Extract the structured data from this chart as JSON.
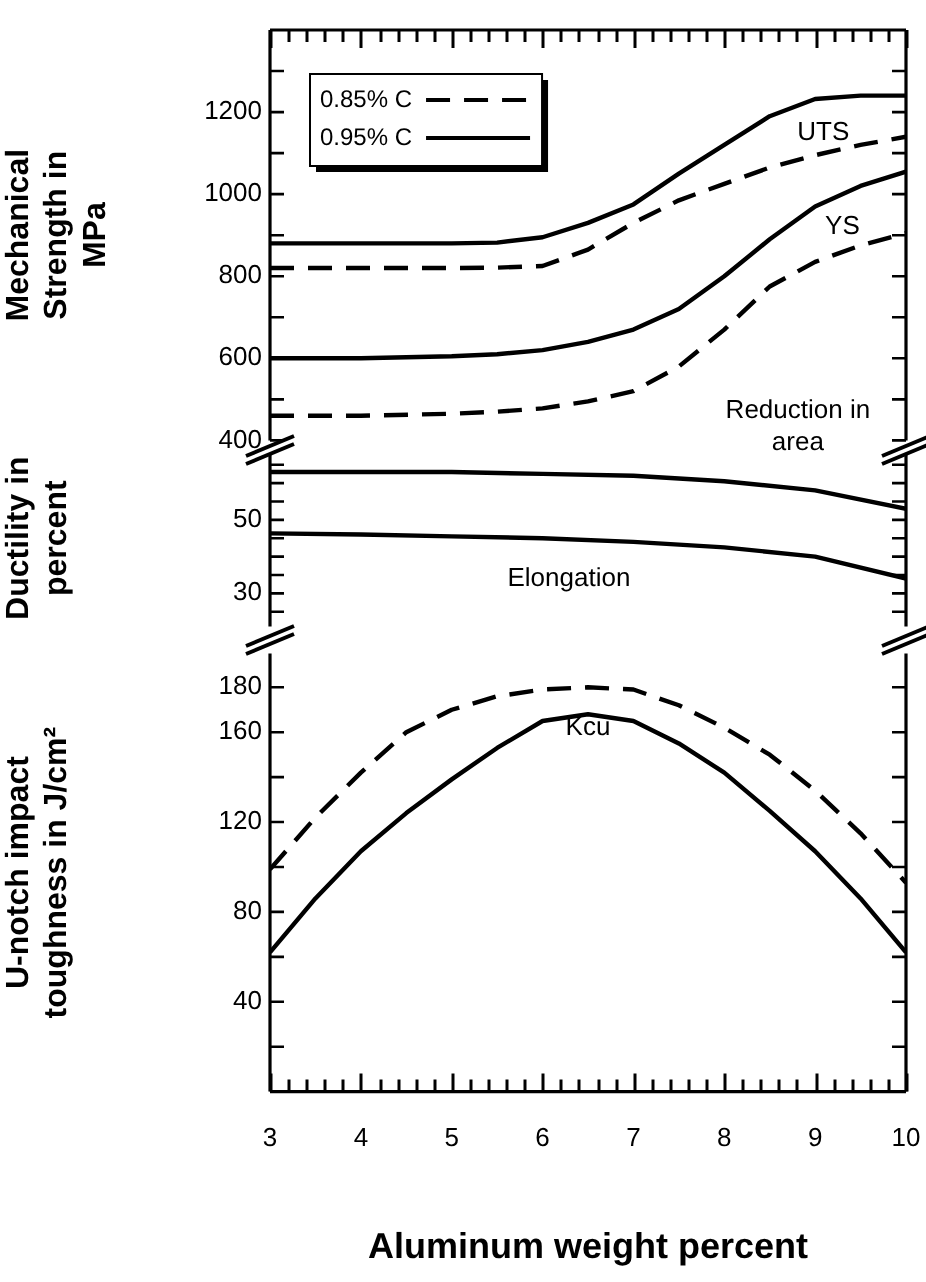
{
  "chart_data": [
    {
      "type": "line",
      "ylabel": "Mechanical Strength in MPa",
      "xlim": [
        3,
        10
      ],
      "ylim": [
        400,
        1400
      ],
      "xticks": [
        3,
        {
          "value": 3.2,
          "label": null
        },
        {
          "value": 3.4,
          "label": null
        },
        {
          "value": 3.6,
          "label": null
        },
        {
          "value": 3.8,
          "label": null
        },
        4,
        {
          "value": 4.2,
          "label": null
        },
        {
          "value": 4.4,
          "label": null
        },
        {
          "value": 4.6,
          "label": null
        },
        {
          "value": 4.8,
          "label": null
        },
        5,
        {
          "value": 5.2,
          "label": null
        },
        {
          "value": 5.4,
          "label": null
        },
        {
          "value": 5.6,
          "label": null
        },
        {
          "value": 5.8,
          "label": null
        },
        6,
        {
          "value": 6.2,
          "label": null
        },
        {
          "value": 6.4,
          "label": null
        },
        {
          "value": 6.6,
          "label": null
        },
        {
          "value": 6.8,
          "label": null
        },
        7,
        {
          "value": 7.2,
          "label": null
        },
        {
          "value": 7.4,
          "label": null
        },
        {
          "value": 7.6,
          "label": null
        },
        {
          "value": 7.8,
          "label": null
        },
        8,
        {
          "value": 8.2,
          "label": null
        },
        {
          "value": 8.4,
          "label": null
        },
        {
          "value": 8.6,
          "label": null
        },
        {
          "value": 8.8,
          "label": null
        },
        9,
        {
          "value": 9.2,
          "label": null
        },
        {
          "value": 9.4,
          "label": null
        },
        {
          "value": 9.6,
          "label": null
        },
        {
          "value": 9.8,
          "label": null
        },
        10
      ],
      "yticks": [
        400,
        {
          "value": 500,
          "label": null
        },
        600,
        {
          "value": 700,
          "label": null
        },
        800,
        {
          "value": 900,
          "label": null
        },
        1000,
        {
          "value": 1100,
          "label": null
        },
        1200,
        {
          "value": 1300,
          "label": null
        }
      ],
      "tick_labels": "y",
      "grid": false,
      "legend": "top left",
      "marker": "none",
      "series": [
        {
          "name": "0.85% C",
          "color": "#000000",
          "line_style": "dashed",
          "x": [
            3,
            4,
            5,
            5.5,
            6,
            6.5,
            7,
            7.5,
            8,
            8.5,
            9,
            9.5,
            10
          ],
          "values": [
            820,
            820,
            820,
            821,
            825,
            865,
            930,
            985,
            1025,
            1065,
            1095,
            1120,
            1140
          ]
        },
        {
          "name": "0.95% C",
          "color": "#000000",
          "line_style": "solid",
          "x": [
            3,
            4,
            5,
            5.5,
            6,
            6.5,
            7,
            7.5,
            8,
            8.5,
            9,
            9.5,
            10
          ],
          "values": [
            880,
            880,
            880,
            882,
            895,
            930,
            975,
            1050,
            1120,
            1190,
            1232,
            1240,
            1240
          ]
        },
        {
          "color": "#000000",
          "line_style": "dashed",
          "x": [
            3,
            4,
            5,
            5.5,
            6,
            6.5,
            7,
            7.5,
            8,
            8.5,
            9,
            9.5,
            10
          ],
          "values": [
            460,
            460,
            465,
            470,
            478,
            495,
            520,
            580,
            670,
            775,
            835,
            875,
            905
          ]
        },
        {
          "color": "#000000",
          "line_style": "solid",
          "x": [
            3,
            4,
            5,
            5.5,
            6,
            6.5,
            7,
            7.5,
            8,
            8.5,
            9,
            9.5,
            10
          ],
          "values": [
            600,
            600,
            605,
            610,
            620,
            640,
            670,
            720,
            800,
            890,
            970,
            1020,
            1055
          ]
        }
      ],
      "annotations": [
        "UTS",
        "YS"
      ]
    },
    {
      "type": "line",
      "ylabel": "Ductility in percent",
      "xlim": [
        3,
        10
      ],
      "ylim": [
        21,
        69
      ],
      "yticks": [
        {
          "value": 25,
          "label": null
        },
        30,
        {
          "value": 35,
          "label": null
        },
        {
          "value": 40,
          "label": null
        },
        {
          "value": 45,
          "label": null
        },
        50,
        {
          "value": 55,
          "label": null
        },
        {
          "value": 60,
          "label": null
        },
        {
          "value": 65,
          "label": null
        }
      ],
      "tick_labels": "y",
      "grid": false,
      "marker": "none",
      "series": [
        {
          "color": "#000000",
          "line_style": "solid",
          "x": [
            3,
            4,
            5,
            6,
            7,
            8,
            9,
            10
          ],
          "values": [
            63,
            63,
            63,
            62.5,
            62,
            60.5,
            58,
            53
          ]
        },
        {
          "color": "#000000",
          "line_style": "solid",
          "x": [
            3,
            4,
            5,
            6,
            7,
            8,
            9,
            10
          ],
          "values": [
            46.3,
            46,
            45.5,
            45,
            44,
            42.5,
            40,
            34
          ]
        }
      ],
      "annotations": [
        "Reduction in area",
        "Elongation"
      ]
    },
    {
      "type": "line",
      "ylabel": "U-notch impact toughness in J/cm²",
      "xlabel": "Aluminum weight percent",
      "xlim": [
        3,
        10
      ],
      "ylim": [
        0,
        195
      ],
      "xticks": [
        3,
        {
          "value": 3.2,
          "label": null
        },
        {
          "value": 3.4,
          "label": null
        },
        {
          "value": 3.6,
          "label": null
        },
        {
          "value": 3.8,
          "label": null
        },
        4,
        {
          "value": 4.2,
          "label": null
        },
        {
          "value": 4.4,
          "label": null
        },
        {
          "value": 4.6,
          "label": null
        },
        {
          "value": 4.8,
          "label": null
        },
        5,
        {
          "value": 5.2,
          "label": null
        },
        {
          "value": 5.4,
          "label": null
        },
        {
          "value": 5.6,
          "label": null
        },
        {
          "value": 5.8,
          "label": null
        },
        6,
        {
          "value": 6.2,
          "label": null
        },
        {
          "value": 6.4,
          "label": null
        },
        {
          "value": 6.6,
          "label": null
        },
        {
          "value": 6.8,
          "label": null
        },
        7,
        {
          "value": 7.2,
          "label": null
        },
        {
          "value": 7.4,
          "label": null
        },
        {
          "value": 7.6,
          "label": null
        },
        {
          "value": 7.8,
          "label": null
        },
        8,
        {
          "value": 8.2,
          "label": null
        },
        {
          "value": 8.4,
          "label": null
        },
        {
          "value": 8.6,
          "label": null
        },
        {
          "value": 8.8,
          "label": null
        },
        9,
        {
          "value": 9.2,
          "label": null
        },
        {
          "value": 9.4,
          "label": null
        },
        {
          "value": 9.6,
          "label": null
        },
        {
          "value": 9.8,
          "label": null
        },
        10
      ],
      "yticks": [
        {
          "value": 20,
          "label": null
        },
        40,
        {
          "value": 60,
          "label": null
        },
        80,
        {
          "value": 100,
          "label": null
        },
        120,
        {
          "value": 140,
          "label": null
        },
        160,
        180
      ],
      "grid": false,
      "marker": "none",
      "series": [
        {
          "color": "#000000",
          "line_style": "dashed",
          "x": [
            3,
            3.5,
            4,
            4.5,
            5,
            5.5,
            6,
            6.5,
            7,
            7.5,
            8,
            8.5,
            9,
            9.5,
            10
          ],
          "values": [
            99,
            122,
            142,
            160,
            170,
            176,
            179,
            180,
            179,
            172,
            162,
            150,
            134,
            115,
            93
          ]
        },
        {
          "color": "#000000",
          "line_style": "solid",
          "x": [
            3,
            3.5,
            4,
            4.5,
            5,
            5.5,
            6,
            6.5,
            7,
            7.5,
            8,
            8.5,
            9,
            9.5,
            10
          ],
          "values": [
            62,
            86,
            107,
            124,
            139,
            153,
            165,
            168,
            165,
            155,
            142,
            125,
            107,
            86,
            62
          ]
        }
      ],
      "annotations": [
        "Kcu"
      ]
    }
  ]
}
